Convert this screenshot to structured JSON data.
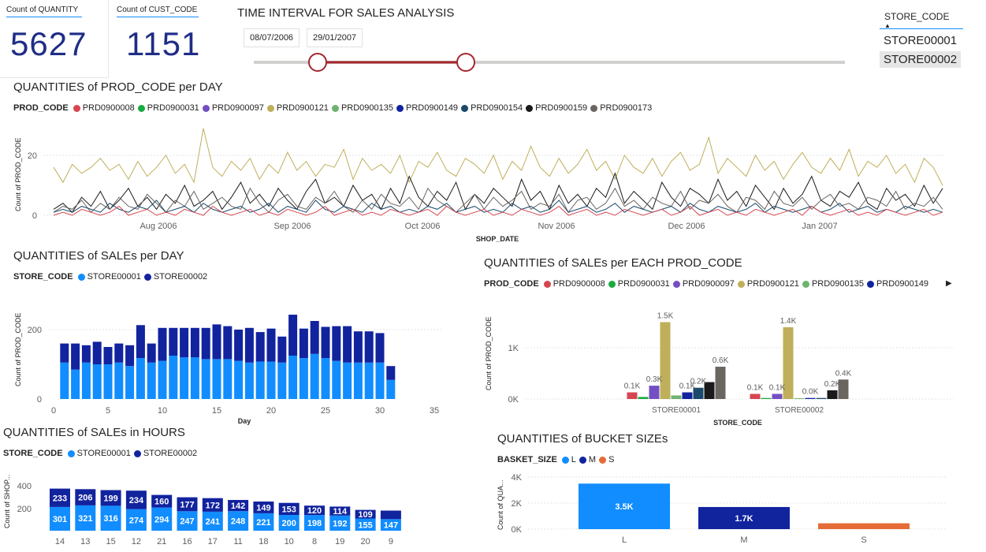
{
  "kpis": [
    {
      "label": "Count of QUANTITY",
      "value": "5627"
    },
    {
      "label": "Count of CUST_CODE",
      "value": "1151"
    }
  ],
  "time_filter": {
    "title": "TIME INTERVAL FOR SALES ANALYSIS",
    "start": "08/07/2006",
    "end": "29/01/2007"
  },
  "store_slicer": {
    "header": "STORE_CODE",
    "items": [
      "STORE00001",
      "STORE00002"
    ],
    "selected": "STORE00002"
  },
  "colors": {
    "store1": "#118dff",
    "store2": "#12239e",
    "slider": "#a4262c",
    "bucket_S": "#e66c37"
  },
  "charts": {
    "prod_per_day": {
      "title": "QUANTITIES of PROD_CODE per DAY",
      "legend_title": "PROD_CODE",
      "legend": [
        {
          "name": "PRD0900008",
          "color": "#d64550"
        },
        {
          "name": "PRD0900031",
          "color": "#1aab40"
        },
        {
          "name": "PRD0900097",
          "color": "#744ec2"
        },
        {
          "name": "PRD0900121",
          "color": "#bfaf5a"
        },
        {
          "name": "PRD0900135",
          "color": "#6fb36f"
        },
        {
          "name": "PRD0900149",
          "color": "#12239e"
        },
        {
          "name": "PRD0900154",
          "color": "#1b4a6b"
        },
        {
          "name": "PRD0900159",
          "color": "#1a1a1a"
        },
        {
          "name": "PRD0900173",
          "color": "#6b6560"
        }
      ],
      "ylabel": "Count of PROD_CODE",
      "xlabel": "SHOP_DATE",
      "yticks": [
        "0",
        "20"
      ],
      "xticks": [
        "Aug 2006",
        "Sep 2006",
        "Oct 2006",
        "Nov 2006",
        "Dec 2006",
        "Jan 2007"
      ]
    },
    "sales_per_day": {
      "title": "QUANTITIES of SALEs per DAY",
      "legend_title": "STORE_CODE",
      "legend": [
        {
          "name": "STORE00001",
          "color": "#118dff"
        },
        {
          "name": "STORE00002",
          "color": "#12239e"
        }
      ],
      "ylabel": "Count of PROD_CODE",
      "xlabel": "Day",
      "yticks": [
        "0",
        "200"
      ],
      "xticks": [
        "0",
        "5",
        "10",
        "15",
        "20",
        "25",
        "30",
        "35"
      ]
    },
    "sales_per_prod": {
      "title": "QUANTITIES of SALEs per EACH PROD_CODE",
      "legend_title": "PROD_CODE",
      "legend": [
        {
          "name": "PRD0900008",
          "color": "#d64550"
        },
        {
          "name": "PRD0900031",
          "color": "#1aab40"
        },
        {
          "name": "PRD0900097",
          "color": "#744ec2"
        },
        {
          "name": "PRD0900121",
          "color": "#bfaf5a"
        },
        {
          "name": "PRD0900135",
          "color": "#6fb36f"
        },
        {
          "name": "PRD0900149",
          "color": "#12239e"
        }
      ],
      "ylabel": "Count of PROD_CODE",
      "xlabel": "STORE_CODE",
      "yticks": [
        "0K",
        "1K"
      ]
    },
    "sales_in_hours": {
      "title": "QUANTITIES of SALEs in HOURS",
      "legend_title": "STORE_CODE",
      "legend": [
        {
          "name": "STORE00001",
          "color": "#118dff"
        },
        {
          "name": "STORE00002",
          "color": "#12239e"
        }
      ],
      "ylabel": "Count of SHOP...",
      "yticks": [
        "200",
        "400"
      ]
    },
    "bucket_sizes": {
      "title": "QUANTITIES of BUCKET SIZEs",
      "legend_title": "BASKET_SIZE",
      "legend": [
        {
          "name": "L",
          "color": "#118dff"
        },
        {
          "name": "M",
          "color": "#12239e"
        },
        {
          "name": "S",
          "color": "#e66c37"
        }
      ],
      "ylabel": "Count of QUA...",
      "yticks": [
        "0K",
        "2K",
        "4K"
      ]
    }
  },
  "chart_data": [
    {
      "type": "line",
      "title": "QUANTITIES of PROD_CODE per DAY",
      "xlabel": "SHOP_DATE",
      "ylabel": "Count of PROD_CODE",
      "x_range": [
        "2006-07-08",
        "2007-01-29"
      ],
      "ylim": [
        0,
        30
      ],
      "series": [
        {
          "name": "PRD0900121",
          "values": [
            16,
            11,
            17,
            14,
            16,
            19,
            15,
            17,
            12,
            18,
            13,
            16,
            20,
            14,
            17,
            11,
            29,
            16,
            13,
            18,
            15,
            19,
            12,
            17,
            14,
            21,
            15,
            18,
            13,
            17,
            16,
            22,
            12,
            19,
            15,
            17,
            14,
            20,
            11,
            18,
            16,
            21,
            15,
            13,
            19,
            17,
            14,
            20,
            12,
            18,
            15,
            23,
            16,
            13,
            19,
            14,
            17,
            22,
            15,
            18,
            12,
            20,
            16,
            14,
            19,
            13,
            18,
            21,
            15,
            17,
            26,
            14,
            19,
            16,
            13,
            20,
            15,
            18,
            12,
            17,
            21,
            16,
            14,
            19,
            15,
            22,
            13,
            18,
            16,
            20,
            14,
            17,
            11,
            19,
            16,
            10
          ]
        },
        {
          "name": "PRD0900159",
          "values": [
            2,
            4,
            1,
            6,
            3,
            8,
            2,
            5,
            9,
            3,
            6,
            2,
            7,
            4,
            10,
            3,
            5,
            8,
            2,
            6,
            11,
            4,
            7,
            3,
            9,
            5,
            2,
            8,
            12,
            4,
            6,
            3,
            10,
            5,
            7,
            2,
            9,
            4,
            13,
            6,
            3,
            8,
            5,
            11,
            2,
            7,
            4,
            9,
            6,
            3,
            12,
            5,
            8,
            2,
            10,
            4,
            7,
            3,
            9,
            6,
            14,
            4,
            8,
            5,
            2,
            11,
            6,
            3,
            9,
            7,
            4,
            12,
            5,
            8,
            3,
            10,
            6,
            2,
            9,
            4,
            7,
            13,
            5,
            3,
            8,
            6,
            11,
            4,
            2,
            9,
            5,
            7,
            3,
            10,
            4,
            9
          ]
        },
        {
          "name": "PRD0900173",
          "values": [
            1,
            3,
            2,
            5,
            1,
            4,
            2,
            6,
            3,
            2,
            7,
            4,
            1,
            5,
            3,
            8,
            2,
            4,
            6,
            3,
            2,
            9,
            4,
            1,
            5,
            7,
            3,
            2,
            6,
            4,
            8,
            3,
            1,
            5,
            2,
            7,
            4,
            3,
            6,
            2,
            9,
            5,
            3,
            1,
            4,
            7,
            2,
            6,
            3,
            5,
            8,
            2,
            4,
            3,
            7,
            1,
            5,
            6,
            2,
            4,
            9,
            3,
            5,
            2,
            6,
            4,
            3,
            8,
            2,
            5,
            4,
            7,
            3,
            1,
            6,
            5,
            2,
            8,
            4,
            3,
            6,
            2,
            5,
            7,
            3,
            4,
            2,
            6,
            5,
            3,
            8,
            2,
            4,
            3,
            6,
            2
          ]
        },
        {
          "name": "PRD0900154",
          "values": [
            1,
            2,
            1,
            3,
            2,
            1,
            4,
            2,
            1,
            3,
            2,
            5,
            1,
            2,
            3,
            1,
            4,
            2,
            1,
            2,
            3,
            1,
            2,
            4,
            1,
            3,
            2,
            1,
            5,
            2,
            1,
            3,
            2,
            1,
            4,
            2,
            3,
            1,
            2,
            1,
            3,
            2,
            4,
            1,
            2,
            3,
            1,
            2,
            1,
            4,
            2,
            3,
            1,
            2,
            5,
            1,
            2,
            3,
            1,
            2,
            4,
            1,
            3,
            2,
            1,
            2,
            3,
            1,
            4,
            2,
            1,
            3,
            2,
            1,
            2,
            4,
            1,
            3,
            2,
            1,
            2,
            3,
            1,
            2,
            4,
            1,
            2,
            3,
            1,
            2,
            1,
            3,
            2,
            1,
            2,
            1
          ]
        },
        {
          "name": "PRD0900008",
          "values": [
            0,
            1,
            0,
            2,
            1,
            0,
            1,
            3,
            0,
            1,
            2,
            0,
            1,
            0,
            2,
            1,
            0,
            3,
            1,
            0,
            1,
            2,
            0,
            1,
            0,
            2,
            1,
            0,
            1,
            3,
            0,
            1,
            2,
            0,
            1,
            0,
            2,
            1,
            0,
            1,
            2,
            0,
            3,
            1,
            0,
            1,
            2,
            0,
            1,
            0,
            2,
            1,
            0,
            1,
            3,
            0,
            1,
            2,
            0,
            1,
            0,
            2,
            1,
            0,
            1,
            2,
            0,
            1,
            3,
            0,
            1,
            2,
            0,
            1,
            0,
            2,
            1,
            0,
            1,
            2,
            0,
            3,
            1,
            0,
            1,
            2,
            0,
            1,
            0,
            2,
            1,
            0,
            1,
            2,
            0,
            1
          ]
        }
      ]
    },
    {
      "type": "bar",
      "title": "QUANTITIES of SALEs per DAY",
      "xlabel": "Day",
      "ylabel": "Count of PROD_CODE",
      "categories": [
        1,
        2,
        3,
        4,
        5,
        6,
        7,
        8,
        9,
        10,
        11,
        12,
        13,
        14,
        15,
        16,
        17,
        18,
        19,
        20,
        21,
        22,
        23,
        24,
        25,
        26,
        27,
        28,
        29,
        30,
        31
      ],
      "series": [
        {
          "name": "STORE00001",
          "values": [
            105,
            85,
            105,
            100,
            100,
            105,
            95,
            118,
            105,
            110,
            125,
            120,
            120,
            115,
            115,
            115,
            110,
            105,
            108,
            108,
            105,
            125,
            118,
            130,
            118,
            110,
            105,
            105,
            105,
            105,
            55
          ]
        },
        {
          "name": "STORE00002",
          "values": [
            55,
            75,
            50,
            65,
            50,
            55,
            60,
            95,
            55,
            95,
            80,
            85,
            85,
            90,
            100,
            95,
            90,
            100,
            85,
            95,
            75,
            118,
            85,
            95,
            90,
            100,
            105,
            90,
            90,
            85,
            40
          ]
        }
      ],
      "xlim": [
        0,
        35
      ],
      "ylim": [
        0,
        260
      ],
      "stacked": true
    },
    {
      "type": "bar",
      "title": "QUANTITIES of SALEs per EACH PROD_CODE",
      "xlabel": "STORE_CODE",
      "ylabel": "Count of PROD_CODE",
      "categories": [
        "STORE00001",
        "STORE00002"
      ],
      "series": [
        {
          "name": "PRD0900008",
          "values": [
            0.13,
            0.1
          ]
        },
        {
          "name": "PRD0900031",
          "values": [
            0.04,
            0.02
          ]
        },
        {
          "name": "PRD0900097",
          "values": [
            0.26,
            0.1
          ]
        },
        {
          "name": "PRD0900121",
          "values": [
            1.5,
            1.4
          ]
        },
        {
          "name": "PRD0900135",
          "values": [
            0.07,
            0.01
          ]
        },
        {
          "name": "PRD0900149",
          "values": [
            0.13,
            0.02
          ]
        },
        {
          "name": "PRD0900154",
          "values": [
            0.22,
            0.02
          ]
        },
        {
          "name": "PRD0900159",
          "values": [
            0.33,
            0.17
          ]
        },
        {
          "name": "PRD0900173",
          "values": [
            0.63,
            0.38
          ]
        }
      ],
      "data_labels": [
        "0.1K",
        "0.3K",
        "1.5K",
        "0.1K",
        "0.2K",
        "0.6K",
        "0.1K",
        "0.1K",
        "1.4K",
        "0.0K",
        "0.2K",
        "0.4K"
      ],
      "unit": "K",
      "ylim": [
        0,
        1.6
      ]
    },
    {
      "type": "bar",
      "title": "QUANTITIES of SALEs in HOURS",
      "ylabel": "Count of SHOP...",
      "categories": [
        "14",
        "13",
        "15",
        "12",
        "21",
        "16",
        "17",
        "11",
        "18",
        "10",
        "8",
        "19",
        "20",
        "9"
      ],
      "series": [
        {
          "name": "STORE00001",
          "values": [
            301,
            321,
            316,
            274,
            294,
            247,
            241,
            248,
            221,
            200,
            198,
            192,
            155,
            147
          ]
        },
        {
          "name": "STORE00002",
          "values": [
            233,
            206,
            199,
            234,
            160,
            177,
            172,
            142,
            149,
            153,
            120,
            114,
            109,
            108
          ]
        }
      ],
      "stacked": true,
      "ylim": [
        0,
        560
      ]
    },
    {
      "type": "bar",
      "title": "QUANTITIES of BUCKET SIZEs",
      "ylabel": "Count of QUA...",
      "categories": [
        "L",
        "M",
        "S"
      ],
      "values": [
        3.5,
        1.7,
        0.45
      ],
      "labels": [
        "3.5K",
        "1.7K",
        ""
      ],
      "unit": "K",
      "ylim": [
        0,
        4
      ]
    }
  ]
}
